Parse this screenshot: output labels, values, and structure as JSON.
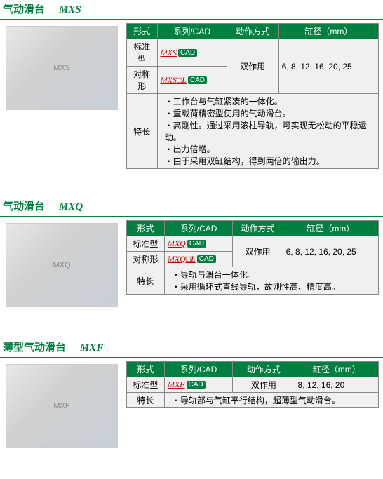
{
  "colors": {
    "brand_green": "#008040",
    "link_red": "#cc0000",
    "cell_bg": "#f0f0f0",
    "border": "#888888"
  },
  "headers": {
    "form": "形式",
    "series_cad": "系列/CAD",
    "action": "动作方式",
    "bore": "缸径（mm）"
  },
  "labels": {
    "standard": "标准型",
    "symmetric": "对称形",
    "features": "特长",
    "cad": "CAD"
  },
  "sections": [
    {
      "title": "气动滑台",
      "model": "MXS",
      "rows": [
        {
          "form": "标准型",
          "series": "MXS",
          "action": "双作用",
          "bore": "6, 8, 12, 16, 20, 25",
          "action_rowspan": 2,
          "bore_rowspan": 2
        },
        {
          "form": "对称形",
          "series": "MXS□L"
        }
      ],
      "features": [
        "工作台与气缸紧凑的一体化。",
        "重载荷精密型使用的气动滑台。",
        "高刚性。通过采用滚柱导轨，可实现无松动的平稳运动。",
        "出力倍增。",
        "由于采用双缸结构，得到两倍的输出力。"
      ]
    },
    {
      "title": "气动滑台",
      "model": "MXQ",
      "rows": [
        {
          "form": "标准型",
          "series": "MXQ",
          "action": "双作用",
          "bore": "6, 8, 12, 16, 20, 25",
          "action_rowspan": 2,
          "bore_rowspan": 2
        },
        {
          "form": "对称形",
          "series": "MXQ□L"
        }
      ],
      "features": [
        "导轨与滑台一体化。",
        "采用循环式直线导轨，故刚性高、精度高。"
      ]
    },
    {
      "title": "薄型气动滑台",
      "model": "MXF",
      "rows": [
        {
          "form": "标准型",
          "series": "MXF",
          "action": "双作用",
          "bore": "8, 12, 16, 20"
        }
      ],
      "features": [
        "导轨部与气缸平行结构，超薄型气动滑台。"
      ]
    }
  ]
}
